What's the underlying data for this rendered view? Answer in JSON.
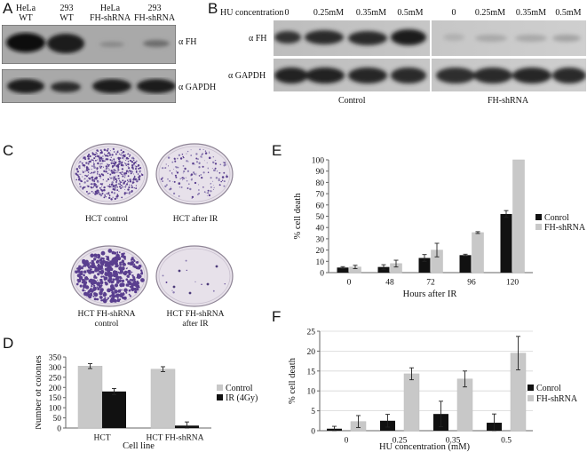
{
  "panels": {
    "a": "A",
    "b": "B",
    "c": "C",
    "d": "D",
    "e": "E",
    "f": "F"
  },
  "panel_a": {
    "lanes": [
      {
        "line1": "HeLa",
        "line2": "WT"
      },
      {
        "line1": "293",
        "line2": "WT"
      },
      {
        "line1": "HeLa",
        "line2": "FH-shRNA"
      },
      {
        "line1": "293",
        "line2": "FH-shRNA"
      }
    ],
    "blot_labels": [
      "α FH",
      "α GAPDH"
    ]
  },
  "panel_b": {
    "header": "HU concentration",
    "concentrations": [
      "0",
      "0.25mM",
      "0.35mM",
      "0.5mM",
      "0",
      "0.25mM",
      "0.35mM",
      "0.5mM"
    ],
    "blot_labels": [
      "α FH",
      "α GAPDH"
    ],
    "groups": [
      "Control",
      "FH-shRNA"
    ]
  },
  "panel_c": {
    "plates": [
      {
        "line1": "HCT control",
        "line2": ""
      },
      {
        "line1": "HCT after IR",
        "line2": ""
      },
      {
        "line1": "HCT FH-shRNA",
        "line2": "control"
      },
      {
        "line1": "HCT FH-shRNA",
        "line2": "after IR"
      }
    ]
  },
  "colors": {
    "dark": "#111111",
    "light": "#c8c8c8"
  },
  "chart_data": [
    {
      "id": "D",
      "type": "bar",
      "categories": [
        "HCT",
        "HCT FH-shRNA"
      ],
      "series": [
        {
          "name": "Control",
          "values": [
            305,
            290
          ],
          "errors": [
            12,
            12
          ],
          "color": "#c8c8c8"
        },
        {
          "name": "IR (4Gy)",
          "values": [
            180,
            12
          ],
          "errors": [
            15,
            18
          ],
          "color": "#111111"
        }
      ],
      "xlabel": "Cell line",
      "ylabel": "Number of colonies",
      "ylim": [
        0,
        350
      ],
      "yticks": [
        0,
        50,
        100,
        150,
        200,
        250,
        300,
        350
      ],
      "legend": "right",
      "grid": false
    },
    {
      "id": "E",
      "type": "bar",
      "categories": [
        "0",
        "48",
        "72",
        "96",
        "120"
      ],
      "series": [
        {
          "name": "Conrol",
          "values": [
            4.5,
            5,
            13,
            15.5,
            52
          ],
          "errors": [
            0.8,
            2,
            3,
            0.8,
            3
          ],
          "color": "#111111"
        },
        {
          "name": "FH-shRNA",
          "values": [
            5,
            8,
            20,
            35.5,
            100
          ],
          "errors": [
            1.5,
            3,
            6,
            0.8,
            0
          ],
          "color": "#c8c8c8"
        }
      ],
      "xlabel": "Hours after IR",
      "ylabel": "% cell death",
      "ylim": [
        0,
        100
      ],
      "yticks": [
        0,
        10,
        20,
        30,
        40,
        50,
        60,
        70,
        80,
        90,
        100
      ],
      "legend": "right",
      "grid": false
    },
    {
      "id": "F",
      "type": "bar",
      "categories": [
        "0",
        "0.25",
        "0.35",
        "0.5"
      ],
      "series": [
        {
          "name": "Conrol",
          "values": [
            0.5,
            2.5,
            4.2,
            2
          ],
          "errors": [
            0.6,
            1.6,
            3.2,
            2.2
          ],
          "color": "#111111"
        },
        {
          "name": "FH-shRNA",
          "values": [
            2.3,
            14.3,
            13,
            19.5
          ],
          "errors": [
            1.5,
            1.5,
            2,
            4.2
          ],
          "color": "#c8c8c8"
        }
      ],
      "xlabel": "HU concentration (mM)",
      "ylabel": "% cell death",
      "ylim": [
        0,
        25
      ],
      "yticks": [
        0,
        5,
        10,
        15,
        20,
        25
      ],
      "legend": "right",
      "grid": true
    }
  ]
}
